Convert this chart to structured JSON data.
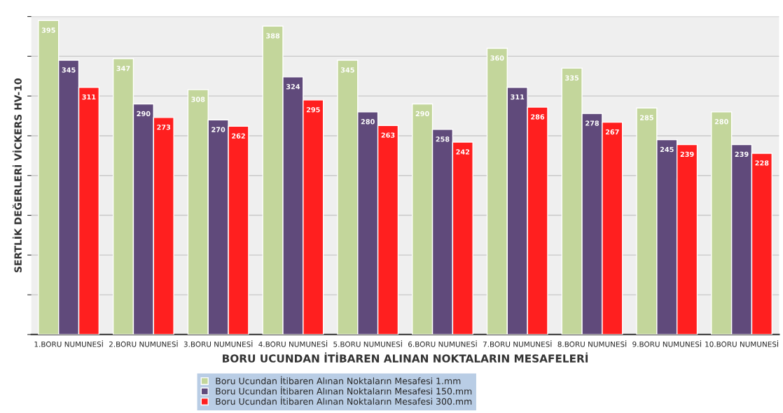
{
  "chart_data": {
    "type": "bar",
    "xlabel": "BORU UCUNDAN İTİBAREN ALINAN NOKTALARIN MESAFELERİ",
    "ylabel": "SERTLİK DEĞERLERİ VİCKERS HV-10",
    "categories": [
      "1.BORU NUMUNESİ",
      "2.BORU NUMUNESİ",
      "3.BORU NUMUNESİ",
      "4.BORU NUMUNESİ",
      "5.BORU NUMUNESİ",
      "6.BORU NUMUNESİ",
      "7.BORU NUMUNESİ",
      "8.BORU NUMUNESİ",
      "9.BORU NUMUNESİ",
      "10.BORU NUMUNESİ"
    ],
    "series": [
      {
        "name": "Boru Ucundan İtibaren Alınan Noktaların Mesafesi 1.mm",
        "color": "#c3d69b",
        "values": [
          395,
          347,
          308,
          388,
          345,
          290,
          360,
          335,
          285,
          280
        ]
      },
      {
        "name": "Boru Ucundan İtibaren Alınan Noktaların Mesafesi 150.mm",
        "color": "#604a7b",
        "values": [
          345,
          290,
          270,
          324,
          280,
          258,
          311,
          278,
          245,
          239
        ]
      },
      {
        "name": "Boru Ucundan İtibaren Alınan Noktaların Mesafesi 300.mm",
        "color": "#ff1f1f",
        "values": [
          311,
          273,
          262,
          295,
          263,
          242,
          286,
          267,
          239,
          228
        ]
      }
    ],
    "ylim": [
      0,
      400
    ],
    "yticks": [
      {
        "value": 0,
        "label": null
      },
      {
        "value": 50,
        "label": null
      },
      {
        "value": 100,
        "label": null
      },
      {
        "value": 150,
        "label": null
      },
      {
        "value": 200,
        "label": null
      },
      {
        "value": 250,
        "label": null
      },
      {
        "value": 300,
        "label": null
      },
      {
        "value": 350,
        "label": null
      },
      {
        "value": 400,
        "label": null
      }
    ],
    "tick_labels": "x",
    "grid": "y",
    "data_labels": true,
    "legend": "bottom"
  }
}
